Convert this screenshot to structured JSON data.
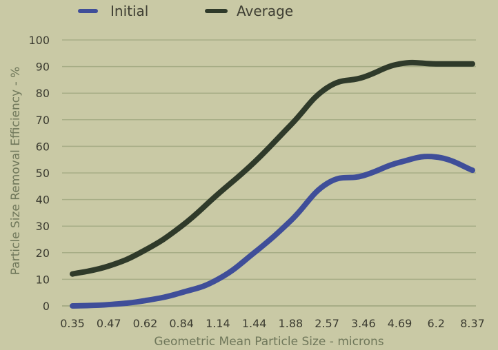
{
  "chart_data": {
    "type": "line",
    "title": "",
    "xlabel": "Geometric Mean Particle Size - microns",
    "ylabel": "Particle Size Removal Efficiency - %",
    "categories": [
      "0.35",
      "0.47",
      "0.62",
      "0.84",
      "1.14",
      "1.44",
      "1.88",
      "2.57",
      "3.46",
      "4.69",
      "6.2",
      "8.37"
    ],
    "ylim": [
      0,
      100
    ],
    "yticks": [
      "0",
      "10",
      "20",
      "30",
      "40",
      "50",
      "60",
      "70",
      "80",
      "90",
      "100"
    ],
    "grid": true,
    "legend": "top-left",
    "series": [
      {
        "name": "Initial",
        "color": "#3f4e99",
        "values": [
          0,
          0.5,
          2,
          5,
          10,
          20,
          32,
          46,
          49,
          54,
          56,
          51
        ]
      },
      {
        "name": "Average",
        "color": "#2f3a2a",
        "values": [
          12,
          15,
          21,
          30,
          42,
          54,
          68,
          82,
          86,
          91,
          91,
          91
        ]
      }
    ]
  }
}
